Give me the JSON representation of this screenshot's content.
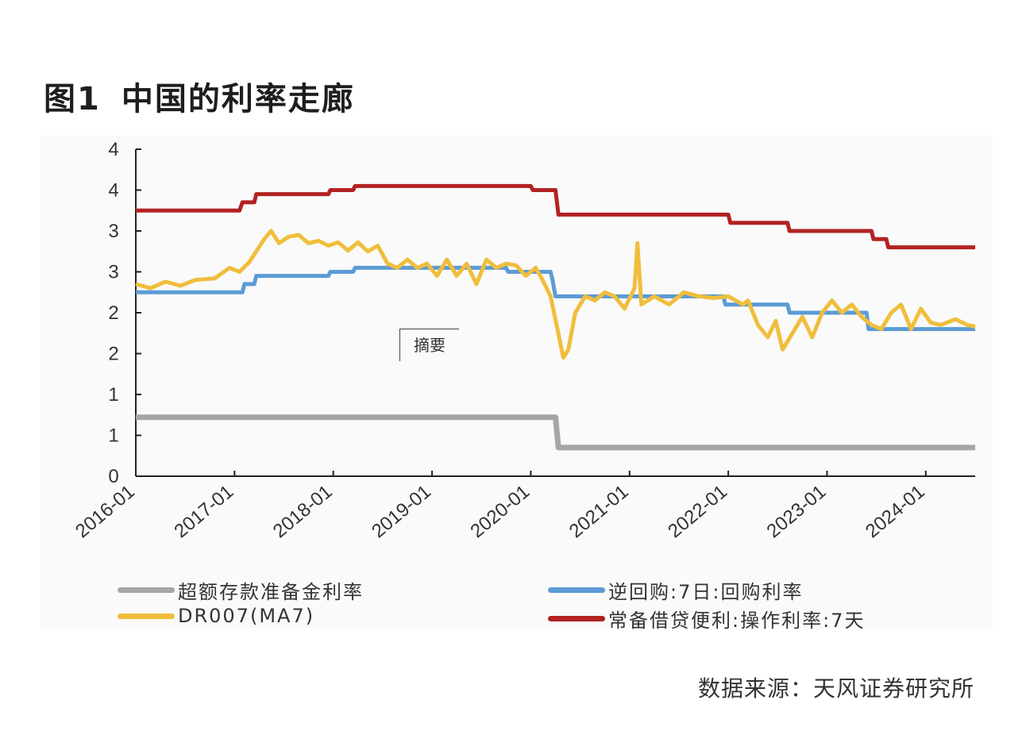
{
  "figure": {
    "number": "图1",
    "title": "中国的利率走廊",
    "source": "数据来源：天风证券研究所",
    "annotation": "摘要"
  },
  "chart_data": {
    "type": "line",
    "x_tick_labels": [
      "2016-01",
      "2017-01",
      "2018-01",
      "2019-01",
      "2020-01",
      "2021-01",
      "2022-01",
      "2023-01",
      "2024-01"
    ],
    "y_tick_labels": [
      "0",
      "1",
      "1",
      "2",
      "2",
      "3",
      "3",
      "4",
      "4"
    ],
    "ylim": [
      0,
      4
    ],
    "xlim": [
      2016.0,
      2024.5
    ],
    "grid": false,
    "legend_position": "bottom",
    "series": [
      {
        "name": "超额存款准备金利率",
        "color": "#a6a6a6",
        "points": [
          [
            2016.0,
            0.72
          ],
          [
            2020.25,
            0.72
          ],
          [
            2020.28,
            0.35
          ],
          [
            2024.5,
            0.35
          ]
        ]
      },
      {
        "name": "逆回购:7日:回购利率",
        "color": "#5b9bd5",
        "points": [
          [
            2016.0,
            2.25
          ],
          [
            2017.08,
            2.25
          ],
          [
            2017.1,
            2.35
          ],
          [
            2017.2,
            2.35
          ],
          [
            2017.22,
            2.45
          ],
          [
            2017.95,
            2.45
          ],
          [
            2017.97,
            2.5
          ],
          [
            2018.2,
            2.5
          ],
          [
            2018.22,
            2.55
          ],
          [
            2019.75,
            2.55
          ],
          [
            2019.77,
            2.5
          ],
          [
            2020.2,
            2.5
          ],
          [
            2020.22,
            2.4
          ],
          [
            2020.25,
            2.2
          ],
          [
            2021.95,
            2.2
          ],
          [
            2021.97,
            2.1
          ],
          [
            2022.6,
            2.1
          ],
          [
            2022.62,
            2.0
          ],
          [
            2023.4,
            2.0
          ],
          [
            2023.42,
            1.8
          ],
          [
            2024.5,
            1.8
          ]
        ]
      },
      {
        "name": "DR007(MA7)",
        "color": "#f0be3c",
        "points": [
          [
            2016.0,
            2.35
          ],
          [
            2016.15,
            2.3
          ],
          [
            2016.3,
            2.38
          ],
          [
            2016.45,
            2.33
          ],
          [
            2016.6,
            2.4
          ],
          [
            2016.8,
            2.42
          ],
          [
            2016.95,
            2.55
          ],
          [
            2017.05,
            2.5
          ],
          [
            2017.15,
            2.62
          ],
          [
            2017.22,
            2.75
          ],
          [
            2017.3,
            2.9
          ],
          [
            2017.37,
            3.0
          ],
          [
            2017.45,
            2.85
          ],
          [
            2017.55,
            2.93
          ],
          [
            2017.65,
            2.95
          ],
          [
            2017.75,
            2.85
          ],
          [
            2017.85,
            2.88
          ],
          [
            2017.95,
            2.82
          ],
          [
            2018.05,
            2.86
          ],
          [
            2018.15,
            2.76
          ],
          [
            2018.25,
            2.86
          ],
          [
            2018.35,
            2.75
          ],
          [
            2018.45,
            2.82
          ],
          [
            2018.55,
            2.6
          ],
          [
            2018.65,
            2.55
          ],
          [
            2018.75,
            2.65
          ],
          [
            2018.85,
            2.55
          ],
          [
            2018.95,
            2.6
          ],
          [
            2019.05,
            2.45
          ],
          [
            2019.15,
            2.65
          ],
          [
            2019.25,
            2.45
          ],
          [
            2019.35,
            2.6
          ],
          [
            2019.45,
            2.35
          ],
          [
            2019.55,
            2.65
          ],
          [
            2019.65,
            2.55
          ],
          [
            2019.75,
            2.6
          ],
          [
            2019.85,
            2.58
          ],
          [
            2019.95,
            2.45
          ],
          [
            2020.05,
            2.55
          ],
          [
            2020.12,
            2.4
          ],
          [
            2020.2,
            2.2
          ],
          [
            2020.27,
            1.8
          ],
          [
            2020.33,
            1.45
          ],
          [
            2020.38,
            1.55
          ],
          [
            2020.45,
            2.0
          ],
          [
            2020.55,
            2.2
          ],
          [
            2020.65,
            2.15
          ],
          [
            2020.75,
            2.25
          ],
          [
            2020.85,
            2.2
          ],
          [
            2020.95,
            2.05
          ],
          [
            2021.05,
            2.3
          ],
          [
            2021.08,
            2.85
          ],
          [
            2021.12,
            2.1
          ],
          [
            2021.25,
            2.2
          ],
          [
            2021.4,
            2.1
          ],
          [
            2021.55,
            2.25
          ],
          [
            2021.7,
            2.2
          ],
          [
            2021.85,
            2.18
          ],
          [
            2022.0,
            2.2
          ],
          [
            2022.15,
            2.1
          ],
          [
            2022.2,
            2.15
          ],
          [
            2022.3,
            1.85
          ],
          [
            2022.4,
            1.7
          ],
          [
            2022.48,
            1.9
          ],
          [
            2022.55,
            1.55
          ],
          [
            2022.65,
            1.75
          ],
          [
            2022.75,
            1.95
          ],
          [
            2022.85,
            1.7
          ],
          [
            2022.95,
            2.0
          ],
          [
            2023.05,
            2.15
          ],
          [
            2023.15,
            2.0
          ],
          [
            2023.25,
            2.1
          ],
          [
            2023.35,
            1.95
          ],
          [
            2023.45,
            1.85
          ],
          [
            2023.55,
            1.8
          ],
          [
            2023.65,
            2.0
          ],
          [
            2023.75,
            2.1
          ],
          [
            2023.85,
            1.8
          ],
          [
            2023.95,
            2.05
          ],
          [
            2024.05,
            1.88
          ],
          [
            2024.15,
            1.85
          ],
          [
            2024.3,
            1.92
          ],
          [
            2024.42,
            1.85
          ],
          [
            2024.5,
            1.83
          ]
        ]
      },
      {
        "name": "常备借贷便利:操作利率:7天",
        "color": "#b22222",
        "points": [
          [
            2016.0,
            3.25
          ],
          [
            2017.05,
            3.25
          ],
          [
            2017.08,
            3.35
          ],
          [
            2017.2,
            3.35
          ],
          [
            2017.22,
            3.45
          ],
          [
            2017.95,
            3.45
          ],
          [
            2017.97,
            3.5
          ],
          [
            2018.2,
            3.5
          ],
          [
            2018.22,
            3.55
          ],
          [
            2020.0,
            3.55
          ],
          [
            2020.02,
            3.5
          ],
          [
            2020.25,
            3.5
          ],
          [
            2020.28,
            3.2
          ],
          [
            2022.0,
            3.2
          ],
          [
            2022.02,
            3.1
          ],
          [
            2022.6,
            3.1
          ],
          [
            2022.62,
            3.0
          ],
          [
            2023.45,
            3.0
          ],
          [
            2023.47,
            2.9
          ],
          [
            2023.6,
            2.9
          ],
          [
            2023.62,
            2.8
          ],
          [
            2024.5,
            2.8
          ]
        ]
      }
    ]
  }
}
